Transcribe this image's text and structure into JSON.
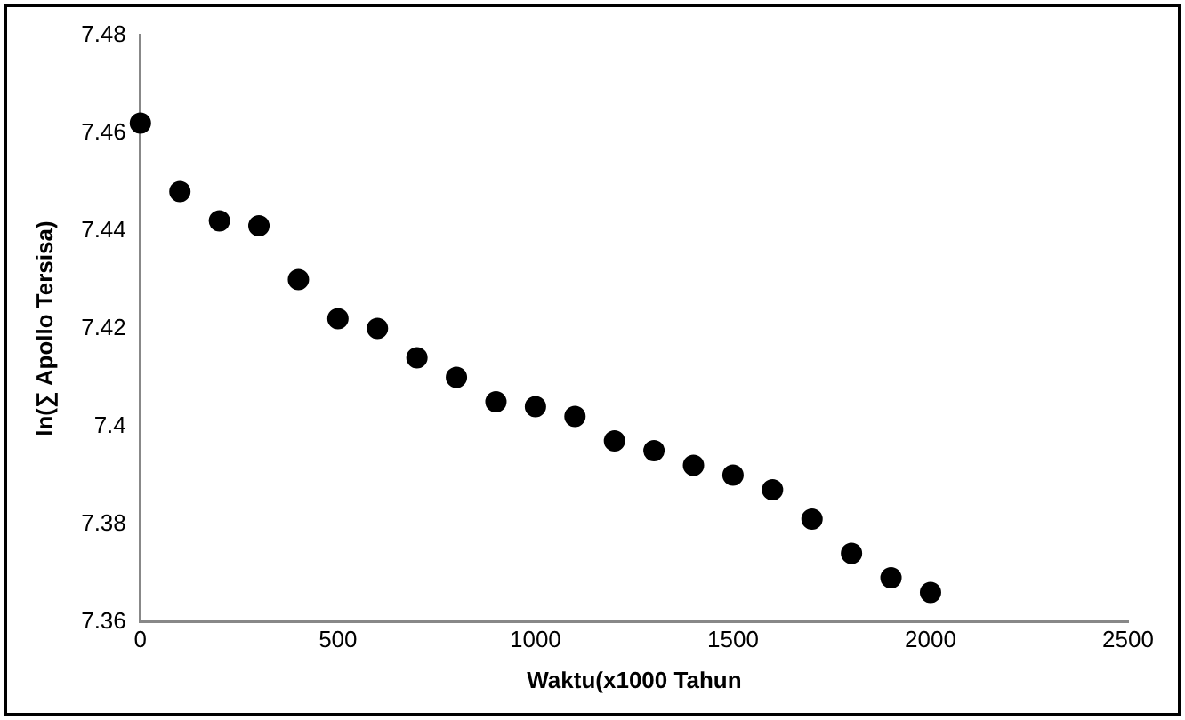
{
  "chart_data": {
    "type": "scatter",
    "xlabel": "Waktu(x1000 Tahun",
    "ylabel": "ln(∑ Apollo Tersisa)",
    "x": [
      0,
      100,
      200,
      300,
      400,
      500,
      600,
      700,
      800,
      900,
      1000,
      1100,
      1200,
      1300,
      1400,
      1500,
      1600,
      1700,
      1800,
      1900,
      2000
    ],
    "series": [
      {
        "color": "#000000",
        "values": [
          7.462,
          7.448,
          7.442,
          7.441,
          7.43,
          7.422,
          7.42,
          7.414,
          7.41,
          7.405,
          7.404,
          7.402,
          7.397,
          7.395,
          7.392,
          7.39,
          7.387,
          7.381,
          7.374,
          7.369,
          7.366
        ]
      }
    ],
    "xlim": [
      0,
      2500
    ],
    "xticks": [
      0,
      500,
      1000,
      1500,
      2000,
      2500
    ],
    "ylim": [
      7.36,
      7.48
    ],
    "yticks": [
      7.36,
      7.38,
      7.4,
      7.42,
      7.44,
      7.46,
      7.48
    ],
    "grid": false,
    "legend": false,
    "marker": "circle"
  }
}
